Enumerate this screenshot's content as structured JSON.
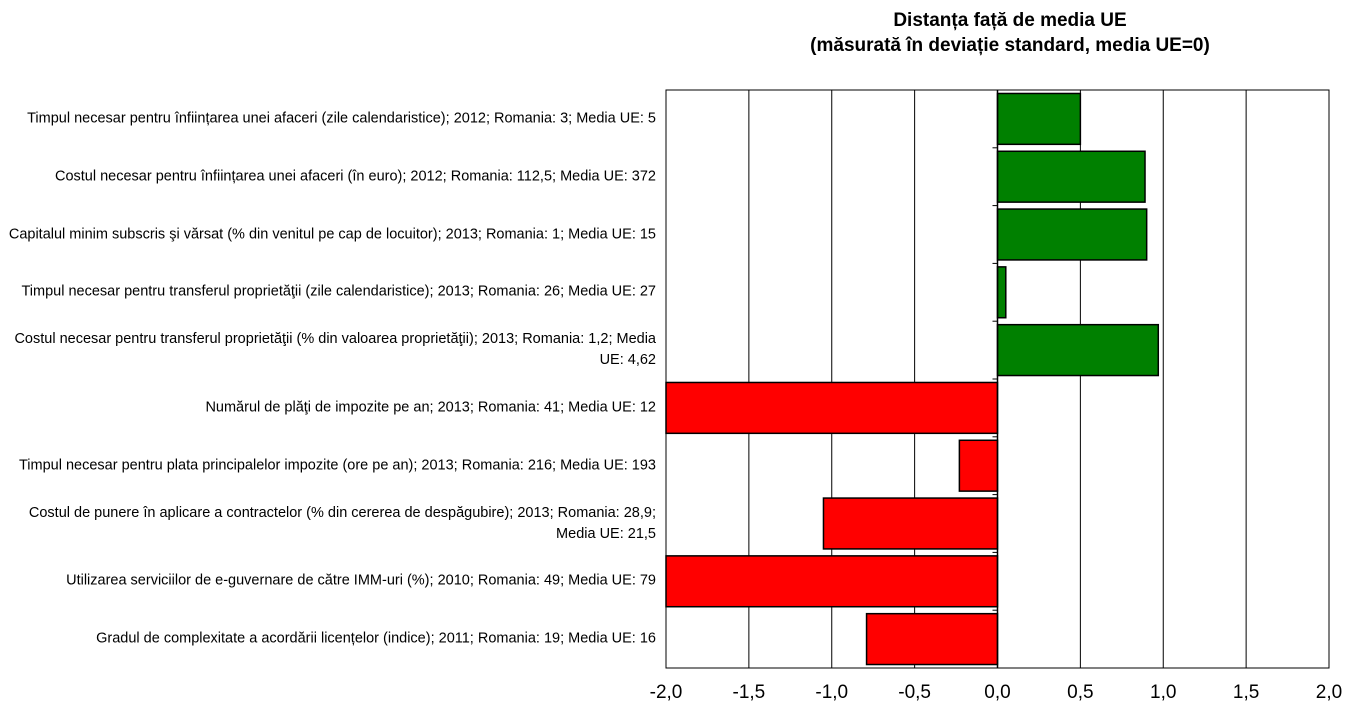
{
  "chart_data": {
    "type": "hbar",
    "title": "Distanța față de media UE",
    "subtitle": "(măsurată în deviație standard, media UE=0)",
    "categories": [
      "Timpul necesar pentru înființarea unei afaceri  (zile calendaristice); 2012; Romania: 3; Media UE: 5",
      "Costul necesar pentru înființarea unei  afaceri  (în euro); 2012; Romania: 112,5; Media UE: 372",
      "Capitalul minim subscris şi vărsat (% din venitul pe cap de locuitor); 2013; Romania: 1; Media UE: 15",
      "Timpul necesar pentru transferul proprietăţii (zile calendaristice); 2013; Romania: 26; Media UE: 27",
      "Costul necesar pentru transferul proprietăţii (% din valoarea proprietăţii); 2013; Romania: 1,2; Media UE: 4,62",
      "Numărul de plăţi de impozite pe an; 2013; Romania: 41; Media UE: 12",
      "Timpul necesar pentru plata principalelor impozite (ore pe an); 2013; Romania: 216; Media UE: 193",
      "Costul de punere în aplicare a contractelor (% din cererea de despăgubire); 2013; Romania: 28,9; Media UE: 21,5",
      "Utilizarea serviciilor de e-guvernare de către IMM-uri (%); 2010; Romania: 49; Media UE: 79",
      "Gradul de complexitate a acordării licențelor (indice); 2011; Romania: 19; Media UE: 16"
    ],
    "values": [
      0.5,
      0.89,
      0.9,
      0.05,
      0.97,
      -2.0,
      -0.23,
      -1.05,
      -2.0,
      -0.79
    ],
    "colors": [
      "#008000",
      "#008000",
      "#008000",
      "#008000",
      "#008000",
      "#ff0000",
      "#ff0000",
      "#ff0000",
      "#ff0000",
      "#ff0000"
    ],
    "xlim": [
      -2,
      2
    ],
    "xticks": [
      {
        "value": -2,
        "label": "-2,0"
      },
      {
        "value": -1.5,
        "label": "-1,5"
      },
      {
        "value": -1,
        "label": "-1,0"
      },
      {
        "value": -0.5,
        "label": "-0,5"
      },
      {
        "value": 0,
        "label": "0,0"
      },
      {
        "value": 0.5,
        "label": "0,5"
      },
      {
        "value": 1,
        "label": "1,0"
      },
      {
        "value": 1.5,
        "label": "1,5"
      },
      {
        "value": 2,
        "label": "2,0"
      }
    ],
    "grid": true
  }
}
